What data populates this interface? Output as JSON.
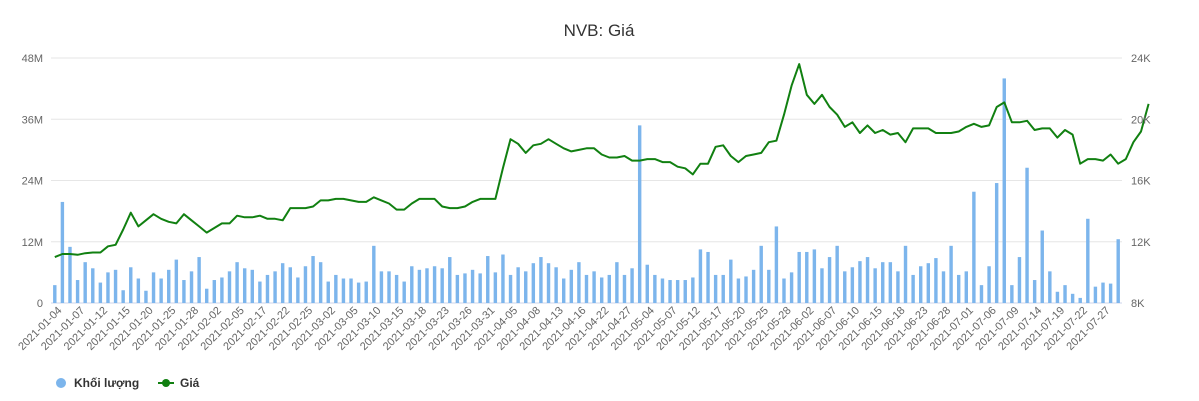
{
  "chart_data": {
    "type": "bar+line",
    "title": "NVB: Giá",
    "legend": [
      {
        "label": "Khối lượng",
        "color": "#7cb5ec",
        "marker": "circle"
      },
      {
        "label": "Giá",
        "color": "#118011",
        "marker": "line-circle"
      }
    ],
    "legend_position": "bottom-left",
    "grid": true,
    "y_left": {
      "ticks": [
        "0",
        "12M",
        "24M",
        "36M",
        "48M"
      ],
      "range": [
        0,
        48000000
      ]
    },
    "y_right": {
      "ticks": [
        "8K",
        "12K",
        "16K",
        "20K",
        "24K"
      ],
      "range": [
        8000,
        24000
      ]
    },
    "x_tick_labels": [
      "2021-01-04",
      "2021-01-07",
      "2021-01-12",
      "2021-01-15",
      "2021-01-20",
      "2021-01-25",
      "2021-01-28",
      "2021-02-02",
      "2021-02-05",
      "2021-02-17",
      "2021-02-22",
      "2021-02-25",
      "2021-03-02",
      "2021-03-05",
      "2021-03-10",
      "2021-03-15",
      "2021-03-18",
      "2021-03-23",
      "2021-03-26",
      "2021-03-31",
      "2021-04-05",
      "2021-04-08",
      "2021-04-13",
      "2021-04-16",
      "2021-04-22",
      "2021-04-27",
      "2021-05-04",
      "2021-05-07",
      "2021-05-12",
      "2021-05-17",
      "2021-05-20",
      "2021-05-25",
      "2021-05-28",
      "2021-06-02",
      "2021-06-07",
      "2021-06-10",
      "2021-06-15",
      "2021-06-18",
      "2021-06-23",
      "2021-06-28",
      "2021-07-01",
      "2021-07-06",
      "2021-07-09",
      "2021-07-14",
      "2021-07-19",
      "2021-07-22",
      "2021-07-27"
    ],
    "series": [
      {
        "name": "Khối lượng",
        "type": "bar",
        "axis": "left",
        "color": "#7cb5ec",
        "values": [
          3.5,
          19.8,
          11.0,
          4.5,
          8.0,
          6.8,
          4.0,
          6.0,
          6.5,
          2.5,
          7.0,
          4.8,
          2.4,
          6.0,
          4.8,
          6.5,
          8.5,
          4.5,
          6.2,
          9.0,
          2.8,
          4.5,
          5.0,
          6.2,
          8.0,
          6.8,
          6.5,
          4.2,
          5.5,
          6.2,
          7.8,
          7.0,
          5.0,
          7.2,
          9.2,
          8.0,
          4.2,
          5.5,
          4.8,
          4.8,
          4.0,
          4.2,
          11.2,
          6.2,
          6.2,
          5.5,
          4.2,
          7.2,
          6.5,
          6.8,
          7.2,
          6.8,
          9.0,
          5.5,
          5.8,
          6.5,
          5.8,
          9.2,
          6.0,
          9.5,
          5.5,
          7.0,
          6.2,
          7.8,
          9.0,
          7.8,
          7.0,
          4.8,
          6.5,
          8.0,
          5.5,
          6.2,
          5.0,
          5.5,
          8.0,
          5.5,
          6.8,
          34.8,
          7.5,
          5.5,
          4.8,
          4.5,
          4.5,
          4.5,
          5.0,
          10.5,
          10.0,
          5.5,
          5.5,
          8.5,
          4.8,
          5.2,
          6.5,
          11.2,
          6.5,
          15.0,
          4.8,
          6.0,
          10.0,
          10.0,
          10.5,
          6.8,
          9.0,
          11.2,
          6.2,
          7.0,
          8.2,
          9.0,
          6.8,
          8.0,
          8.0,
          6.2,
          11.2,
          5.5,
          7.2,
          7.8,
          8.8,
          6.2,
          11.2,
          5.5,
          6.2,
          21.8,
          3.5,
          7.2,
          23.5,
          44.0,
          3.5,
          9.0,
          26.5,
          4.5,
          14.2,
          6.2,
          2.2,
          3.5,
          1.8,
          1.0,
          16.5,
          3.2,
          4.0,
          3.8,
          12.5
        ]
      },
      {
        "name": "Giá",
        "type": "line",
        "axis": "right",
        "color": "#118011",
        "values": [
          11.0,
          11.2,
          11.2,
          11.15,
          11.25,
          11.3,
          11.3,
          11.7,
          11.8,
          12.8,
          13.9,
          13.0,
          13.4,
          13.8,
          13.5,
          13.3,
          13.2,
          13.8,
          13.4,
          13.0,
          12.6,
          12.9,
          13.2,
          13.2,
          13.7,
          13.6,
          13.6,
          13.7,
          13.5,
          13.5,
          13.4,
          14.2,
          14.2,
          14.2,
          14.3,
          14.7,
          14.7,
          14.8,
          14.8,
          14.7,
          14.6,
          14.6,
          14.9,
          14.7,
          14.5,
          14.1,
          14.1,
          14.5,
          14.8,
          14.8,
          14.8,
          14.3,
          14.2,
          14.2,
          14.3,
          14.6,
          14.8,
          14.8,
          14.8,
          16.8,
          18.7,
          18.4,
          17.8,
          18.3,
          18.4,
          18.7,
          18.4,
          18.1,
          17.9,
          18.0,
          18.1,
          18.1,
          17.7,
          17.5,
          17.5,
          17.6,
          17.3,
          17.3,
          17.4,
          17.4,
          17.2,
          17.2,
          16.9,
          16.8,
          16.4,
          17.1,
          17.1,
          18.2,
          18.3,
          17.6,
          17.2,
          17.6,
          17.7,
          17.8,
          18.5,
          18.6,
          20.3,
          22.2,
          23.6,
          21.6,
          21.0,
          21.6,
          20.8,
          20.3,
          19.5,
          19.8,
          19.1,
          19.6,
          19.1,
          19.3,
          19.0,
          19.1,
          18.5,
          19.4,
          19.4,
          19.4,
          19.1,
          19.1,
          19.1,
          19.2,
          19.5,
          19.7,
          19.5,
          19.6,
          20.8,
          21.1,
          19.8,
          19.8,
          19.9,
          19.3,
          19.4,
          19.4,
          18.8,
          19.3,
          19.0,
          17.1,
          17.4,
          17.4,
          17.3,
          17.7,
          17.1,
          17.4,
          18.5,
          19.2,
          21.0
        ]
      }
    ]
  }
}
